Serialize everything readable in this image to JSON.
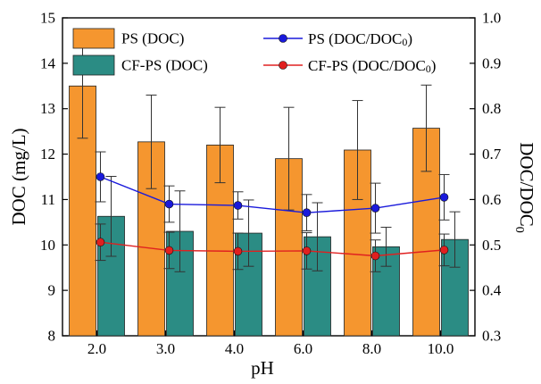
{
  "chart_data": {
    "type": "bar",
    "categories": [
      "2.0",
      "3.0",
      "4.0",
      "6.0",
      "8.0",
      "10.0"
    ],
    "xlabel": "pH",
    "ylabel": "DOC (mg/L)",
    "ylabel_right": "DOC/DOC",
    "ylabel_right_subscript": "0",
    "ylim": [
      8,
      15
    ],
    "yticks": [
      8,
      9,
      10,
      11,
      12,
      13,
      14,
      15
    ],
    "ylim_right": [
      0.3,
      1.0
    ],
    "yticks_right": [
      "0.3",
      "0.4",
      "0.5",
      "0.6",
      "0.7",
      "0.8",
      "0.9",
      "1.0"
    ],
    "legend_position": "top",
    "bar_series": [
      {
        "name": "PS (DOC)",
        "color": "#F5962F",
        "values": [
          13.5,
          12.27,
          12.2,
          11.9,
          12.09,
          12.57
        ],
        "errors": [
          1.15,
          1.03,
          0.83,
          1.13,
          1.09,
          0.95
        ]
      },
      {
        "name": "CF-PS (DOC)",
        "color": "#2B8C84",
        "values": [
          10.63,
          10.3,
          10.26,
          10.18,
          9.96,
          10.12
        ],
        "errors": [
          0.88,
          0.89,
          0.73,
          0.75,
          0.43,
          0.61
        ]
      }
    ],
    "line_series": [
      {
        "name": "PS (DOC/DOC",
        "name_subscript": "0",
        "name_suffix": ")",
        "color": "#1A1ADB",
        "values": [
          0.65,
          0.59,
          0.587,
          0.571,
          0.581,
          0.605
        ],
        "errors": [
          0.055,
          0.04,
          0.03,
          0.04,
          0.055,
          0.05
        ]
      },
      {
        "name": "CF-PS (DOC/DOC",
        "name_subscript": "0",
        "name_suffix": ")",
        "color": "#E02020",
        "values": [
          0.506,
          0.488,
          0.486,
          0.487,
          0.476,
          0.489
        ],
        "errors": [
          0.04,
          0.04,
          0.04,
          0.04,
          0.035,
          0.035
        ]
      }
    ]
  }
}
